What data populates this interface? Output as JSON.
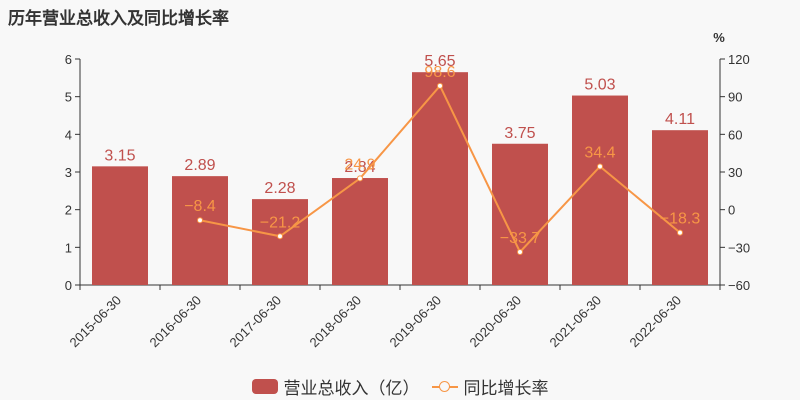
{
  "title": "历年营业总收入及同比增长率",
  "colors": {
    "bar": "#c0504d",
    "line": "#f79646",
    "axis": "#333333",
    "text": "#333333"
  },
  "legend": {
    "bar_label": "营业总收入（亿）",
    "line_label": "同比增长率"
  },
  "chart_data": {
    "type": "bar",
    "title": "历年营业总收入及同比增长率",
    "categories": [
      "2015-06-30",
      "2016-06-30",
      "2017-06-30",
      "2018-06-30",
      "2019-06-30",
      "2020-06-30",
      "2021-06-30",
      "2022-06-30"
    ],
    "series": [
      {
        "name": "营业总收入（亿）",
        "type": "bar",
        "axis": "left",
        "values": [
          3.15,
          2.89,
          2.28,
          2.84,
          5.65,
          3.75,
          5.03,
          4.11
        ]
      },
      {
        "name": "同比增长率",
        "type": "line",
        "axis": "right",
        "values": [
          null,
          -8.4,
          -21.2,
          24.9,
          98.6,
          -33.7,
          34.4,
          -18.3
        ]
      }
    ],
    "y_left": {
      "ticks": [
        0,
        1,
        2,
        3,
        4,
        5,
        6
      ],
      "ylim": [
        0,
        6
      ]
    },
    "y_right": {
      "label": "%",
      "ticks": [
        -60,
        -30,
        0,
        30,
        60,
        90,
        120
      ],
      "ylim": [
        -60,
        120
      ]
    },
    "xlabel": "",
    "ylabel": "",
    "grid": false,
    "legend_position": "bottom"
  }
}
